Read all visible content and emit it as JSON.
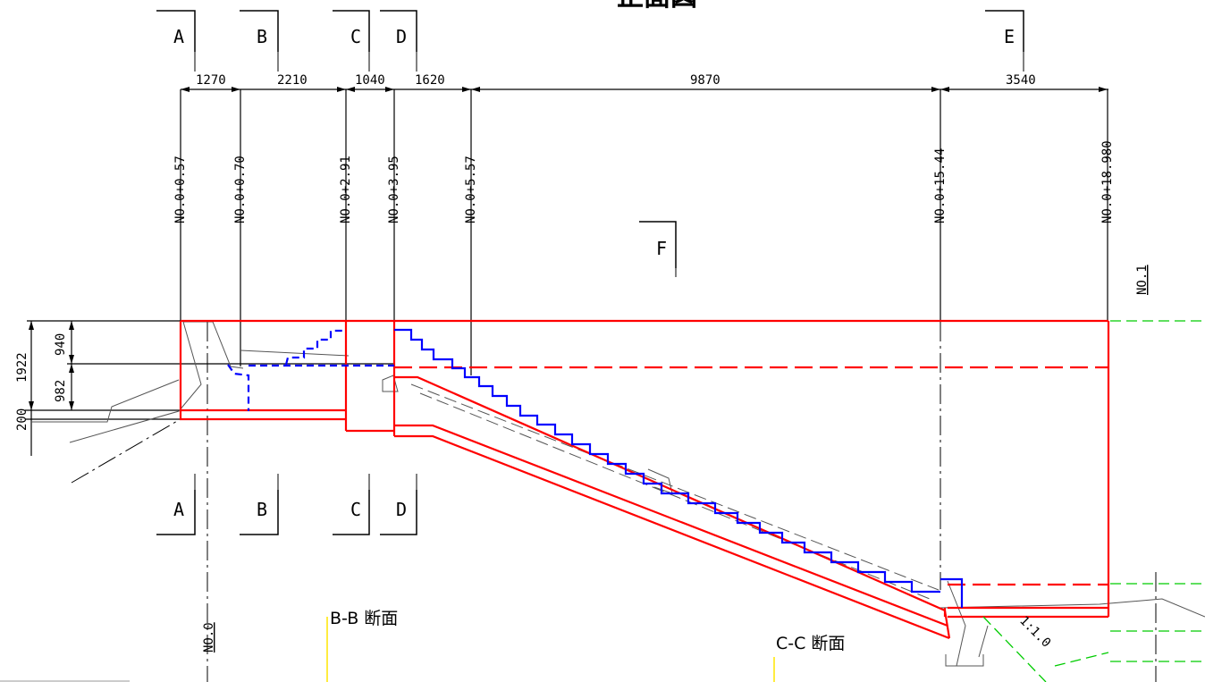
{
  "drawing_title": "正面図",
  "section_markers": {
    "A": "A",
    "B": "B",
    "C": "C",
    "D": "D",
    "E": "E",
    "F": "F"
  },
  "horizontal_dims": [
    "1270",
    "2210",
    "1040",
    "1620",
    "9870",
    "3540"
  ],
  "stations": [
    "NO.0+0.57",
    "NO.0+0.70",
    "NO.0+2.91",
    "NO.0+3.95",
    "NO.0+5.57",
    "NO.0+15.44",
    "NO.0+18.980"
  ],
  "vertical_dims": {
    "total": "1922",
    "upper": "940",
    "lower": "982",
    "base": "200"
  },
  "point_labels": {
    "no0": "NO.0",
    "no1": "NO.1"
  },
  "section_labels": {
    "bb": "B-B 断面",
    "cc": "C-C 断面"
  },
  "slope_label": "1:1.0",
  "colors": {
    "structure": "#ff0000",
    "steps": "#0000ff",
    "ground_green": "#00cc00",
    "line_black": "#000000",
    "ground_gray": "#555555",
    "yellow_mark": "#ffe600"
  }
}
